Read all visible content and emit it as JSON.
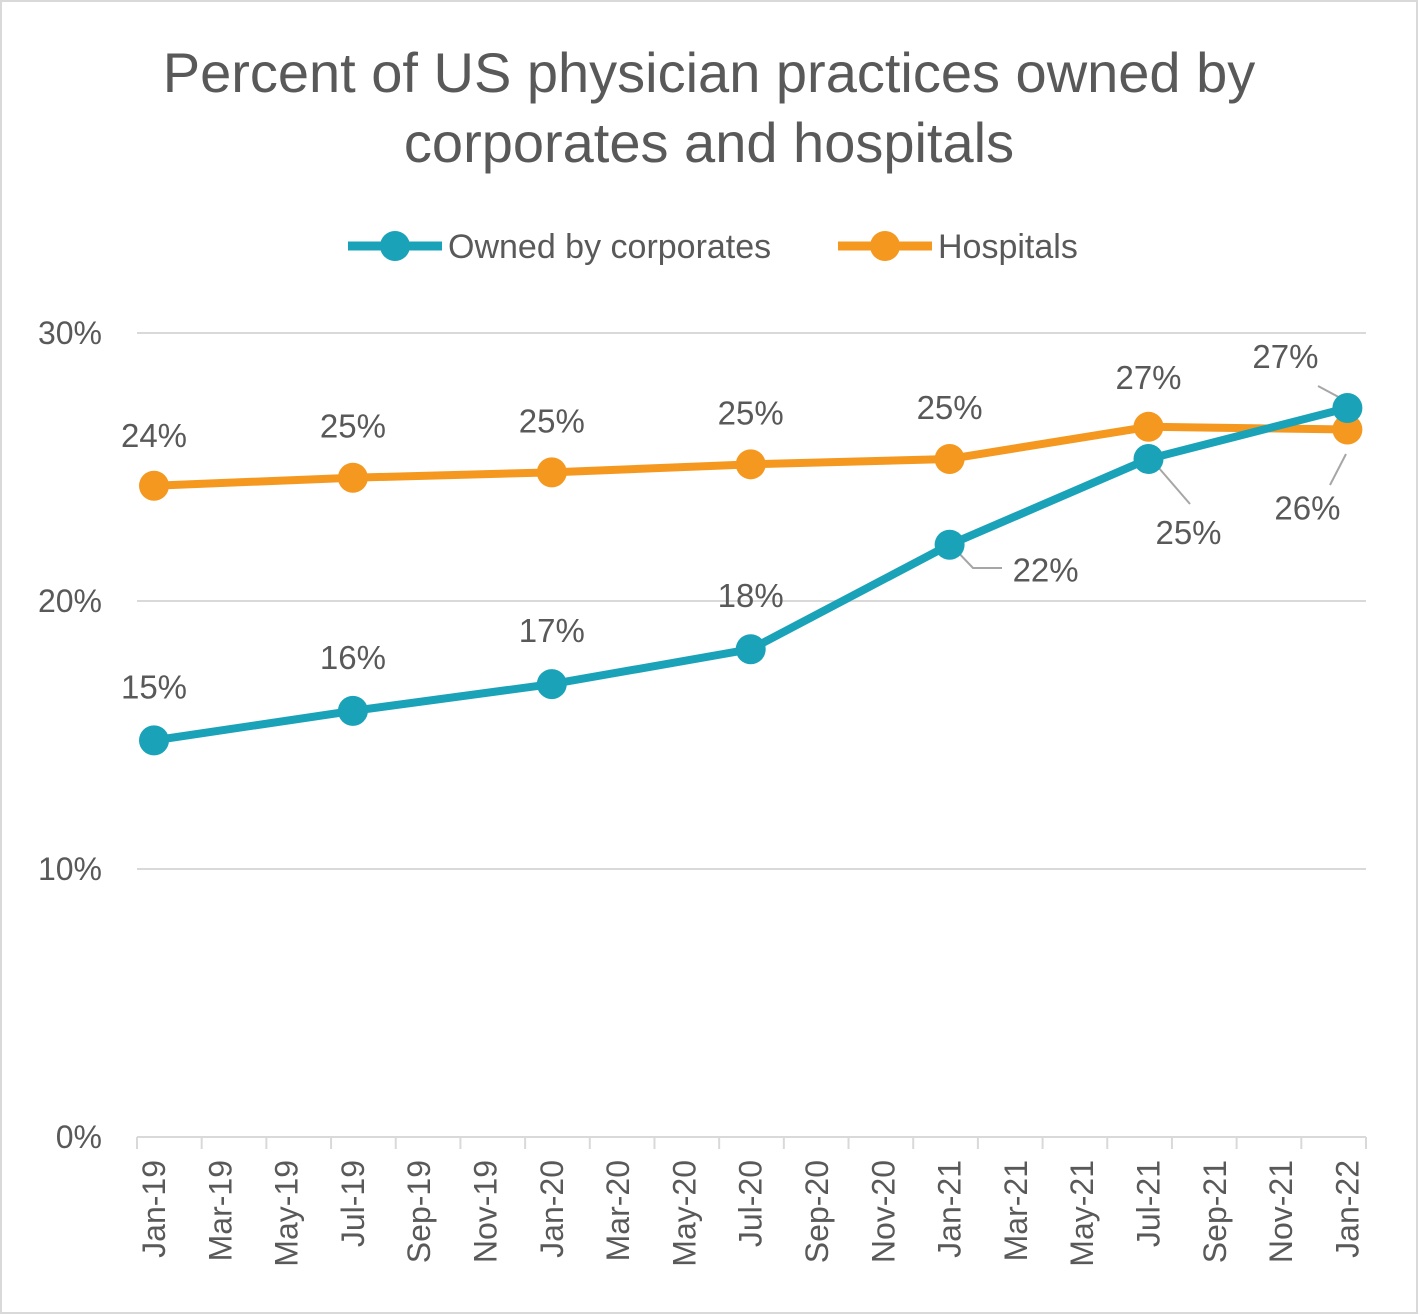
{
  "chart_data": {
    "type": "line",
    "title_lines": [
      "Percent of US physician practices owned by",
      "corporates and hospitals"
    ],
    "x": [
      "Jan-19",
      "Mar-19",
      "May-19",
      "Jul-19",
      "Sep-19",
      "Nov-19",
      "Jan-20",
      "Mar-20",
      "May-20",
      "Jul-20",
      "Sep-20",
      "Nov-20",
      "Jan-21",
      "Mar-21",
      "May-21",
      "Jul-21",
      "Sep-21",
      "Nov-21",
      "Jan-22"
    ],
    "ylim": [
      0,
      30
    ],
    "yticks": [
      "0%",
      "10%",
      "20%",
      "30%"
    ],
    "grid": true,
    "legend_position": "top",
    "series": [
      {
        "name": "Owned by corporates",
        "color": "#1aa3b8",
        "x": [
          "Jan-19",
          "Jul-19",
          "Jan-20",
          "Jul-20",
          "Jan-21",
          "Jul-21",
          "Jan-22"
        ],
        "values": [
          14.8,
          15.9,
          16.9,
          18.2,
          22.1,
          25.3,
          27.2
        ],
        "labels": [
          "15%",
          "16%",
          "17%",
          "18%",
          "22%",
          "25%",
          "27%"
        ]
      },
      {
        "name": "Hospitals",
        "color": "#f5981f",
        "x": [
          "Jan-19",
          "Jul-19",
          "Jan-20",
          "Jul-20",
          "Jan-21",
          "Jul-21",
          "Jan-22"
        ],
        "values": [
          24.3,
          24.6,
          24.8,
          25.1,
          25.3,
          26.5,
          26.4
        ],
        "labels": [
          "24%",
          "25%",
          "25%",
          "25%",
          "25%",
          "27%",
          "26%"
        ]
      }
    ]
  }
}
